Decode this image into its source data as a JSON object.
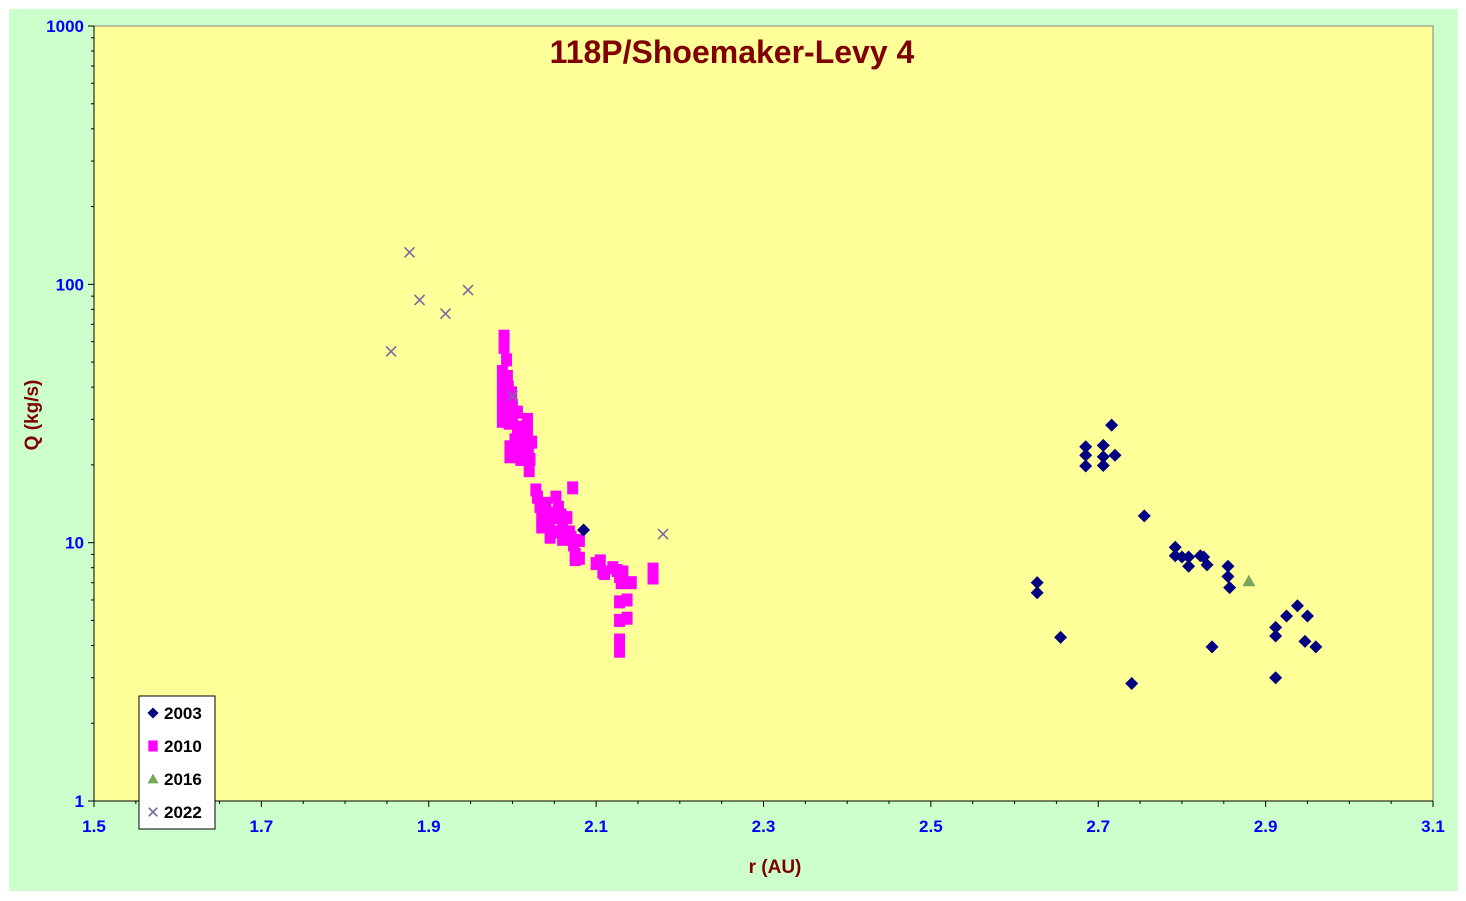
{
  "chart_data": {
    "type": "scatter",
    "title": "118P/Shoemaker-Levy 4",
    "xlabel": "r (AU)",
    "ylabel": "Q (kg/s)",
    "xlim": [
      1.5,
      3.1
    ],
    "ylim": [
      1,
      1000
    ],
    "yscale": "log",
    "x_ticks": [
      "1.5",
      "1.7",
      "1.9",
      "2.1",
      "2.3",
      "2.5",
      "2.7",
      "2.9",
      "3.1"
    ],
    "y_ticks": [
      "1",
      "10",
      "100",
      "1000"
    ],
    "grid": false,
    "legend_position": "bottom-left",
    "colors": {
      "plot_background": "#ffff99",
      "frame_background": "#ccffcc"
    },
    "series": [
      {
        "name": "2003",
        "marker": "diamond",
        "color": "#000080",
        "points": [
          [
            2.085,
            11.2
          ],
          [
            2.627,
            7.0
          ],
          [
            2.627,
            6.4
          ],
          [
            2.655,
            4.3
          ],
          [
            2.685,
            23.5
          ],
          [
            2.685,
            21.8
          ],
          [
            2.685,
            19.8
          ],
          [
            2.706,
            23.8
          ],
          [
            2.706,
            21.5
          ],
          [
            2.706,
            19.9
          ],
          [
            2.716,
            28.5
          ],
          [
            2.72,
            21.8
          ],
          [
            2.74,
            2.85
          ],
          [
            2.755,
            12.7
          ],
          [
            2.792,
            9.6
          ],
          [
            2.792,
            8.9
          ],
          [
            2.8,
            8.8
          ],
          [
            2.808,
            8.8
          ],
          [
            2.808,
            8.1
          ],
          [
            2.822,
            8.9
          ],
          [
            2.826,
            8.8
          ],
          [
            2.83,
            8.2
          ],
          [
            2.836,
            3.95
          ],
          [
            2.855,
            8.1
          ],
          [
            2.855,
            7.4
          ],
          [
            2.857,
            6.7
          ],
          [
            2.912,
            4.7
          ],
          [
            2.912,
            4.35
          ],
          [
            2.912,
            3.0
          ],
          [
            2.925,
            5.2
          ],
          [
            2.938,
            5.7
          ],
          [
            2.947,
            4.15
          ],
          [
            2.95,
            5.2
          ],
          [
            2.96,
            3.95
          ]
        ]
      },
      {
        "name": "2010",
        "marker": "square",
        "color": "#ff00ff",
        "points": [
          [
            1.99,
            63
          ],
          [
            1.99,
            57
          ],
          [
            1.988,
            46
          ],
          [
            1.988,
            41
          ],
          [
            1.988,
            37
          ],
          [
            1.988,
            33
          ],
          [
            1.988,
            29.5
          ],
          [
            1.993,
            51
          ],
          [
            1.994,
            44
          ],
          [
            1.995,
            40
          ],
          [
            1.995,
            36
          ],
          [
            1.996,
            32
          ],
          [
            1.996,
            29
          ],
          [
            1.997,
            23.5
          ],
          [
            1.997,
            21.5
          ],
          [
            1.999,
            38
          ],
          [
            2.0,
            34
          ],
          [
            2.0,
            30
          ],
          [
            2.003,
            25
          ],
          [
            2.004,
            22.5
          ],
          [
            2.006,
            32
          ],
          [
            2.006,
            28
          ],
          [
            2.008,
            26
          ],
          [
            2.01,
            23.5
          ],
          [
            2.01,
            21
          ],
          [
            2.013,
            26.5
          ],
          [
            2.014,
            24
          ],
          [
            2.018,
            30
          ],
          [
            2.018,
            27
          ],
          [
            2.019,
            23
          ],
          [
            2.021,
            21
          ],
          [
            2.02,
            19
          ],
          [
            2.023,
            24.5
          ],
          [
            2.028,
            16
          ],
          [
            2.03,
            15
          ],
          [
            2.033,
            13.8
          ],
          [
            2.035,
            12.8
          ],
          [
            2.035,
            11.5
          ],
          [
            2.04,
            14.2
          ],
          [
            2.042,
            13
          ],
          [
            2.044,
            11.8
          ],
          [
            2.045,
            10.5
          ],
          [
            2.048,
            12.5
          ],
          [
            2.05,
            11
          ],
          [
            2.052,
            15
          ],
          [
            2.055,
            13.7
          ],
          [
            2.058,
            12.8
          ],
          [
            2.06,
            11.5
          ],
          [
            2.06,
            10.3
          ],
          [
            2.065,
            12.5
          ],
          [
            2.068,
            11
          ],
          [
            2.07,
            10.5
          ],
          [
            2.072,
            16.3
          ],
          [
            2.073,
            9.8
          ],
          [
            2.075,
            9.0
          ],
          [
            2.075,
            8.6
          ],
          [
            2.08,
            10.2
          ],
          [
            2.08,
            8.7
          ],
          [
            2.1,
            8.3
          ],
          [
            2.105,
            8.5
          ],
          [
            2.108,
            7.7
          ],
          [
            2.11,
            7.6
          ],
          [
            2.12,
            8.0
          ],
          [
            2.125,
            7.8
          ],
          [
            2.128,
            7.4
          ],
          [
            2.13,
            7.0
          ],
          [
            2.132,
            7.7
          ],
          [
            2.128,
            5.9
          ],
          [
            2.128,
            5.0
          ],
          [
            2.128,
            4.2
          ],
          [
            2.128,
            3.8
          ],
          [
            2.137,
            6.0
          ],
          [
            2.137,
            5.1
          ],
          [
            2.142,
            7.0
          ],
          [
            2.168,
            7.9
          ],
          [
            2.168,
            7.3
          ]
        ]
      },
      {
        "name": "2016",
        "marker": "triangle",
        "color": "#77a85a",
        "points": [
          [
            2.88,
            7.1
          ]
        ]
      },
      {
        "name": "2022",
        "marker": "x",
        "color": "#7b6aa0",
        "points": [
          [
            1.855,
            55
          ],
          [
            1.877,
            133
          ],
          [
            1.889,
            87
          ],
          [
            1.92,
            77
          ],
          [
            1.947,
            95
          ],
          [
            2.0,
            37
          ],
          [
            2.18,
            10.8
          ]
        ]
      }
    ]
  }
}
